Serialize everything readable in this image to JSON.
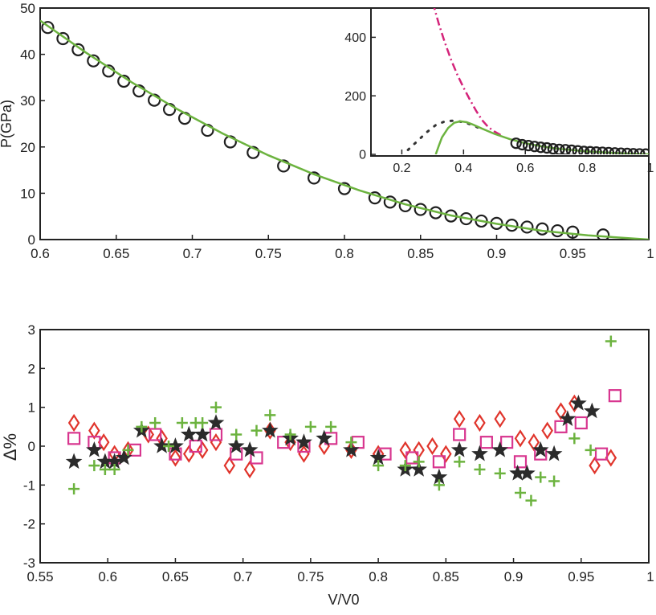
{
  "chart_data": [
    {
      "id": "top-main",
      "type": "scatter",
      "ylabel": "P(GPa)",
      "xlabel": "",
      "xlim": [
        0.6,
        1.0
      ],
      "ylim": [
        0,
        50
      ],
      "xticks": [
        "0.6",
        "0.65",
        "0.7",
        "0.75",
        "0.8",
        "0.85",
        "0.9",
        "0.95",
        "1"
      ],
      "yticks": [
        "0",
        "10",
        "20",
        "30",
        "40",
        "50"
      ],
      "series": [
        {
          "marker": "circle",
          "color": "#1f1f1f",
          "x": [
            0.605,
            0.615,
            0.625,
            0.635,
            0.645,
            0.655,
            0.665,
            0.675,
            0.685,
            0.695,
            0.71,
            0.725,
            0.74,
            0.76,
            0.78,
            0.8,
            0.82,
            0.83,
            0.84,
            0.85,
            0.86,
            0.87,
            0.88,
            0.89,
            0.9,
            0.91,
            0.92,
            0.93,
            0.94,
            0.95,
            0.97
          ],
          "y": [
            45.8,
            43.4,
            41.0,
            38.6,
            36.4,
            34.2,
            32.1,
            30.1,
            28.1,
            26.2,
            23.6,
            21.1,
            18.8,
            15.9,
            13.3,
            11.0,
            9.0,
            8.1,
            7.3,
            6.5,
            5.8,
            5.1,
            4.5,
            4.0,
            3.5,
            3.1,
            2.7,
            2.3,
            1.9,
            1.6,
            1.0
          ]
        },
        {
          "marker": "line",
          "color": "#6cb33f",
          "x": [
            0.6,
            0.63,
            0.66,
            0.69,
            0.72,
            0.75,
            0.78,
            0.81,
            0.84,
            0.87,
            0.9,
            0.93,
            0.96,
            1.0
          ],
          "y": [
            47.3,
            40.4,
            34.0,
            28.2,
            22.9,
            18.2,
            14.1,
            10.6,
            7.6,
            5.2,
            3.4,
            1.9,
            0.9,
            0.0
          ]
        }
      ]
    },
    {
      "id": "top-inset",
      "type": "line",
      "xlim": [
        0.1,
        1.0
      ],
      "ylim": [
        0,
        500
      ],
      "xticks": [
        "0.2",
        "0.4",
        "0.6",
        "0.8",
        "1"
      ],
      "yticks": [
        "0",
        "200",
        "400"
      ],
      "series": [
        {
          "marker": "dashdot",
          "color": "#d4237a",
          "x": [
            0.3,
            0.32,
            0.34,
            0.36,
            0.38,
            0.4,
            0.42,
            0.44,
            0.46,
            0.48,
            0.5,
            0.52
          ],
          "y": [
            520,
            445,
            380,
            322,
            272,
            228,
            188,
            150,
            117,
            93,
            78,
            66
          ]
        },
        {
          "marker": "dot",
          "color": "#333333",
          "x": [
            0.22,
            0.25,
            0.28,
            0.31,
            0.34,
            0.37,
            0.4,
            0.43,
            0.46
          ],
          "y": [
            15,
            45,
            75,
            100,
            113,
            115,
            110,
            100,
            85
          ]
        },
        {
          "marker": "line",
          "color": "#6cb33f",
          "x": [
            0.31,
            0.32,
            0.33,
            0.35,
            0.37,
            0.39,
            0.41,
            0.43,
            0.46,
            0.5,
            0.55,
            0.6,
            0.65,
            0.7,
            0.8,
            0.9,
            1.0
          ],
          "y": [
            0,
            30,
            58,
            90,
            108,
            113,
            110,
            102,
            88,
            70,
            52,
            38,
            28,
            20,
            10,
            4,
            0
          ]
        },
        {
          "marker": "circle",
          "color": "#1f1f1f",
          "x": [
            0.57,
            0.59,
            0.61,
            0.63,
            0.65,
            0.67,
            0.69,
            0.71,
            0.73,
            0.75,
            0.77,
            0.79,
            0.81,
            0.83,
            0.85,
            0.87,
            0.89,
            0.91,
            0.93,
            0.95,
            0.97,
            0.99
          ],
          "y": [
            38,
            33,
            30,
            27,
            24,
            22,
            19,
            17,
            16,
            14,
            12,
            10,
            9,
            8,
            7,
            6,
            5,
            4,
            3,
            2,
            1.5,
            1
          ]
        }
      ]
    },
    {
      "id": "bottom",
      "type": "scatter",
      "xlabel": "V/V0",
      "ylabel": "Δ%",
      "xlim": [
        0.55,
        1.0
      ],
      "ylim": [
        -3,
        3
      ],
      "xticks": [
        "0.55",
        "0.6",
        "0.65",
        "0.7",
        "0.75",
        "0.8",
        "0.85",
        "0.9",
        "0.95",
        "1"
      ],
      "yticks": [
        "-3",
        "-2",
        "-1",
        "0",
        "1",
        "2",
        "3"
      ],
      "series": [
        {
          "marker": "diamond",
          "color": "#e0342b",
          "x": [
            0.575,
            0.59,
            0.597,
            0.605,
            0.615,
            0.63,
            0.64,
            0.65,
            0.66,
            0.67,
            0.68,
            0.69,
            0.705,
            0.72,
            0.735,
            0.745,
            0.76,
            0.78,
            0.8,
            0.82,
            0.83,
            0.84,
            0.85,
            0.86,
            0.875,
            0.89,
            0.905,
            0.915,
            0.925,
            0.935,
            0.945,
            0.96,
            0.972
          ],
          "y": [
            0.6,
            0.4,
            0.1,
            -0.2,
            -0.1,
            0.3,
            0.2,
            -0.3,
            -0.2,
            -0.1,
            0.1,
            -0.5,
            -0.6,
            0.4,
            0.1,
            -0.2,
            0.0,
            -0.1,
            -0.2,
            -0.1,
            -0.1,
            0.0,
            -0.2,
            0.7,
            0.6,
            0.7,
            0.2,
            0.1,
            0.4,
            0.9,
            1.1,
            -0.5,
            -0.3
          ]
        },
        {
          "marker": "square",
          "color": "#d8368f",
          "x": [
            0.575,
            0.59,
            0.605,
            0.62,
            0.635,
            0.65,
            0.665,
            0.68,
            0.695,
            0.71,
            0.73,
            0.745,
            0.765,
            0.785,
            0.805,
            0.825,
            0.845,
            0.86,
            0.88,
            0.895,
            0.905,
            0.92,
            0.935,
            0.95,
            0.965,
            0.975
          ],
          "y": [
            0.2,
            0.1,
            -0.3,
            -0.1,
            0.3,
            -0.2,
            0.0,
            0.3,
            -0.2,
            -0.3,
            0.1,
            0.0,
            0.2,
            0.1,
            -0.2,
            -0.3,
            -0.4,
            0.3,
            0.1,
            0.1,
            -0.4,
            -0.2,
            0.5,
            0.6,
            -0.2,
            1.3
          ]
        },
        {
          "marker": "star",
          "color": "#2b2b2b",
          "x": [
            0.575,
            0.59,
            0.598,
            0.605,
            0.612,
            0.625,
            0.64,
            0.65,
            0.66,
            0.67,
            0.68,
            0.695,
            0.705,
            0.72,
            0.735,
            0.745,
            0.76,
            0.78,
            0.8,
            0.82,
            0.83,
            0.845,
            0.86,
            0.875,
            0.89,
            0.903,
            0.91,
            0.92,
            0.93,
            0.94,
            0.948,
            0.958
          ],
          "y": [
            -0.4,
            -0.1,
            -0.4,
            -0.4,
            -0.3,
            0.4,
            0.0,
            0.0,
            0.3,
            0.3,
            0.6,
            0.0,
            -0.1,
            0.4,
            0.2,
            0.1,
            0.2,
            -0.1,
            -0.3,
            -0.6,
            -0.6,
            -0.8,
            -0.1,
            -0.2,
            -0.1,
            -0.7,
            -0.7,
            -0.1,
            -0.2,
            0.7,
            1.1,
            0.9
          ]
        },
        {
          "marker": "plus",
          "color": "#6cb33f",
          "x": [
            0.575,
            0.59,
            0.598,
            0.605,
            0.615,
            0.625,
            0.635,
            0.645,
            0.655,
            0.665,
            0.67,
            0.68,
            0.695,
            0.71,
            0.72,
            0.735,
            0.75,
            0.765,
            0.78,
            0.8,
            0.82,
            0.83,
            0.845,
            0.86,
            0.875,
            0.89,
            0.905,
            0.913,
            0.92,
            0.93,
            0.945,
            0.957,
            0.972
          ],
          "y": [
            -1.1,
            -0.5,
            -0.6,
            -0.6,
            -0.1,
            0.5,
            0.6,
            0.0,
            0.6,
            0.6,
            0.6,
            1.0,
            0.3,
            0.4,
            0.8,
            0.3,
            0.5,
            0.5,
            0.1,
            -0.5,
            -0.5,
            -0.4,
            -1.0,
            -0.4,
            -0.6,
            -0.7,
            -1.2,
            -1.4,
            -0.8,
            -0.9,
            0.2,
            -0.1,
            2.7
          ]
        }
      ]
    }
  ]
}
